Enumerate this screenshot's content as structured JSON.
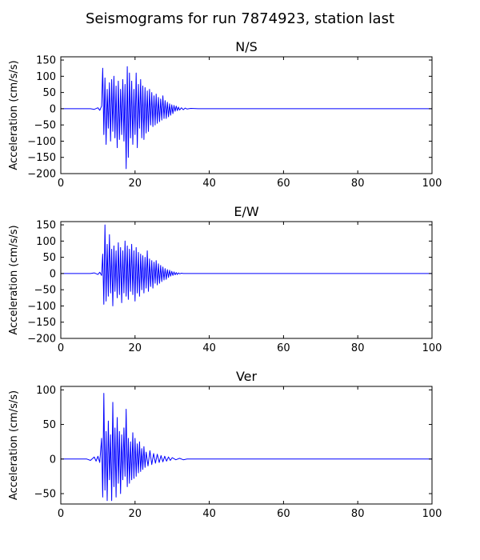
{
  "figure_title": "Seismograms for run 7874923, station last",
  "chart_data": [
    {
      "type": "line",
      "title": "N/S",
      "xlabel": "",
      "ylabel": "Acceleration (cm/s/s)",
      "xlim": [
        0,
        100
      ],
      "ylim": [
        -200,
        160
      ],
      "xticks": [
        0,
        20,
        40,
        60,
        80,
        100
      ],
      "yticks": [
        -200,
        -150,
        -100,
        -50,
        0,
        50,
        100,
        150
      ],
      "series": [
        {
          "color": "#0000ff",
          "x": [
            0,
            8,
            9,
            10,
            10.5,
            11,
            11.3,
            11.6,
            11.9,
            12.2,
            12.5,
            12.8,
            13.1,
            13.4,
            13.7,
            14.0,
            14.3,
            14.6,
            14.9,
            15.2,
            15.5,
            15.8,
            16.1,
            16.4,
            16.7,
            17.0,
            17.3,
            17.6,
            17.9,
            18.2,
            18.5,
            18.8,
            19.1,
            19.4,
            19.7,
            20.0,
            20.3,
            20.6,
            20.9,
            21.2,
            21.5,
            21.8,
            22.1,
            22.4,
            22.7,
            23.0,
            23.3,
            23.6,
            23.9,
            24.2,
            24.5,
            24.8,
            25.1,
            25.4,
            25.7,
            26.0,
            26.3,
            26.6,
            26.9,
            27.2,
            27.5,
            27.8,
            28.1,
            28.4,
            28.7,
            29.0,
            29.3,
            29.6,
            29.9,
            30.2,
            30.5,
            30.8,
            31.1,
            31.4,
            31.7,
            32.0,
            32.5,
            33.0,
            33.5,
            34.0,
            35.0,
            37.0,
            40.0,
            100
          ],
          "y": [
            0,
            0,
            -2,
            3,
            -5,
            8,
            125,
            -80,
            95,
            -110,
            60,
            -60,
            80,
            -100,
            90,
            -70,
            100,
            -90,
            70,
            -120,
            85,
            -95,
            60,
            -80,
            90,
            -100,
            75,
            -185,
            130,
            -150,
            110,
            -90,
            85,
            -110,
            60,
            -80,
            110,
            -120,
            75,
            -60,
            90,
            -90,
            70,
            -95,
            65,
            -75,
            55,
            -70,
            60,
            -50,
            50,
            -55,
            40,
            -50,
            45,
            -45,
            35,
            -40,
            30,
            -35,
            40,
            -30,
            25,
            -30,
            20,
            -25,
            15,
            -20,
            12,
            -15,
            10,
            -8,
            8,
            -6,
            5,
            -4,
            3,
            -3,
            2,
            -1,
            1,
            0,
            0,
            0
          ]
        }
      ]
    },
    {
      "type": "line",
      "title": "E/W",
      "xlabel": "",
      "ylabel": "Acceleration (cm/s/s)",
      "xlim": [
        0,
        100
      ],
      "ylim": [
        -200,
        160
      ],
      "xticks": [
        0,
        20,
        40,
        60,
        80,
        100
      ],
      "yticks": [
        -200,
        -150,
        -100,
        -50,
        0,
        50,
        100,
        150
      ],
      "series": [
        {
          "color": "#0000ff",
          "x": [
            0,
            8,
            9,
            10,
            10.5,
            11,
            11.3,
            11.6,
            11.9,
            12.2,
            12.5,
            12.8,
            13.1,
            13.4,
            13.7,
            14.0,
            14.3,
            14.6,
            14.9,
            15.2,
            15.5,
            15.8,
            16.1,
            16.4,
            16.7,
            17.0,
            17.3,
            17.6,
            17.9,
            18.2,
            18.5,
            18.8,
            19.1,
            19.4,
            19.7,
            20.0,
            20.3,
            20.6,
            20.9,
            21.2,
            21.5,
            21.8,
            22.1,
            22.4,
            22.7,
            23.0,
            23.3,
            23.6,
            23.9,
            24.2,
            24.5,
            24.8,
            25.1,
            25.4,
            25.7,
            26.0,
            26.3,
            26.6,
            26.9,
            27.2,
            27.5,
            27.8,
            28.1,
            28.4,
            28.7,
            29.0,
            29.3,
            29.6,
            29.9,
            30.2,
            30.5,
            30.8,
            31.1,
            31.4,
            31.7,
            32.0,
            32.5,
            33.0,
            33.5,
            34.0,
            35.0,
            37.0,
            40.0,
            100
          ],
          "y": [
            0,
            0,
            2,
            -3,
            4,
            -6,
            60,
            -95,
            150,
            -85,
            90,
            -70,
            120,
            -60,
            75,
            -100,
            85,
            -55,
            70,
            -75,
            95,
            -65,
            80,
            -90,
            70,
            -60,
            100,
            -70,
            85,
            -80,
            75,
            -55,
            90,
            -65,
            70,
            -85,
            80,
            -60,
            65,
            -70,
            60,
            -50,
            55,
            -60,
            50,
            -45,
            70,
            -55,
            45,
            -40,
            40,
            -45,
            35,
            -30,
            40,
            -35,
            30,
            -30,
            25,
            -25,
            20,
            -20,
            15,
            -18,
            12,
            -12,
            10,
            -8,
            7,
            -6,
            5,
            -4,
            3,
            -3,
            2,
            -1,
            1,
            0,
            0,
            0,
            0,
            0,
            0,
            0
          ]
        }
      ]
    },
    {
      "type": "line",
      "title": "Ver",
      "xlabel": "",
      "ylabel": "Acceleration (cm/s/s)",
      "xlim": [
        0,
        100
      ],
      "ylim": [
        -65,
        105
      ],
      "xticks": [
        0,
        20,
        40,
        60,
        80,
        100
      ],
      "yticks": [
        -50,
        0,
        50,
        100
      ],
      "series": [
        {
          "color": "#0000ff",
          "x": [
            0,
            7,
            8,
            9,
            9.5,
            10,
            10.5,
            11,
            11.3,
            11.6,
            11.9,
            12.2,
            12.5,
            12.8,
            13.1,
            13.4,
            13.7,
            14.0,
            14.3,
            14.6,
            14.9,
            15.2,
            15.5,
            15.8,
            16.1,
            16.4,
            16.7,
            17.0,
            17.3,
            17.6,
            17.9,
            18.2,
            18.5,
            18.8,
            19.1,
            19.4,
            19.7,
            20.0,
            20.3,
            20.6,
            20.9,
            21.2,
            21.5,
            21.8,
            22.1,
            22.4,
            22.7,
            23.0,
            23.5,
            24.0,
            24.5,
            25.0,
            25.5,
            26.0,
            26.5,
            27.0,
            27.5,
            28.0,
            28.5,
            29.0,
            29.5,
            30.0,
            31.0,
            32.0,
            33.0,
            34.0,
            36.0,
            38.0,
            40.0,
            100
          ],
          "y": [
            0,
            0,
            -2,
            3,
            -3,
            4,
            -5,
            30,
            -55,
            95,
            -45,
            40,
            -60,
            55,
            -30,
            35,
            -60,
            82,
            -40,
            45,
            -55,
            60,
            -35,
            40,
            -50,
            35,
            -30,
            45,
            -25,
            72,
            -40,
            30,
            -35,
            25,
            -30,
            38,
            -28,
            30,
            -25,
            22,
            -20,
            25,
            -18,
            15,
            -15,
            18,
            -12,
            10,
            -10,
            12,
            -8,
            8,
            -6,
            7,
            -5,
            5,
            -4,
            4,
            -3,
            3,
            -2,
            2,
            -1,
            1,
            -1,
            0,
            0,
            0,
            0,
            0
          ]
        }
      ]
    }
  ]
}
